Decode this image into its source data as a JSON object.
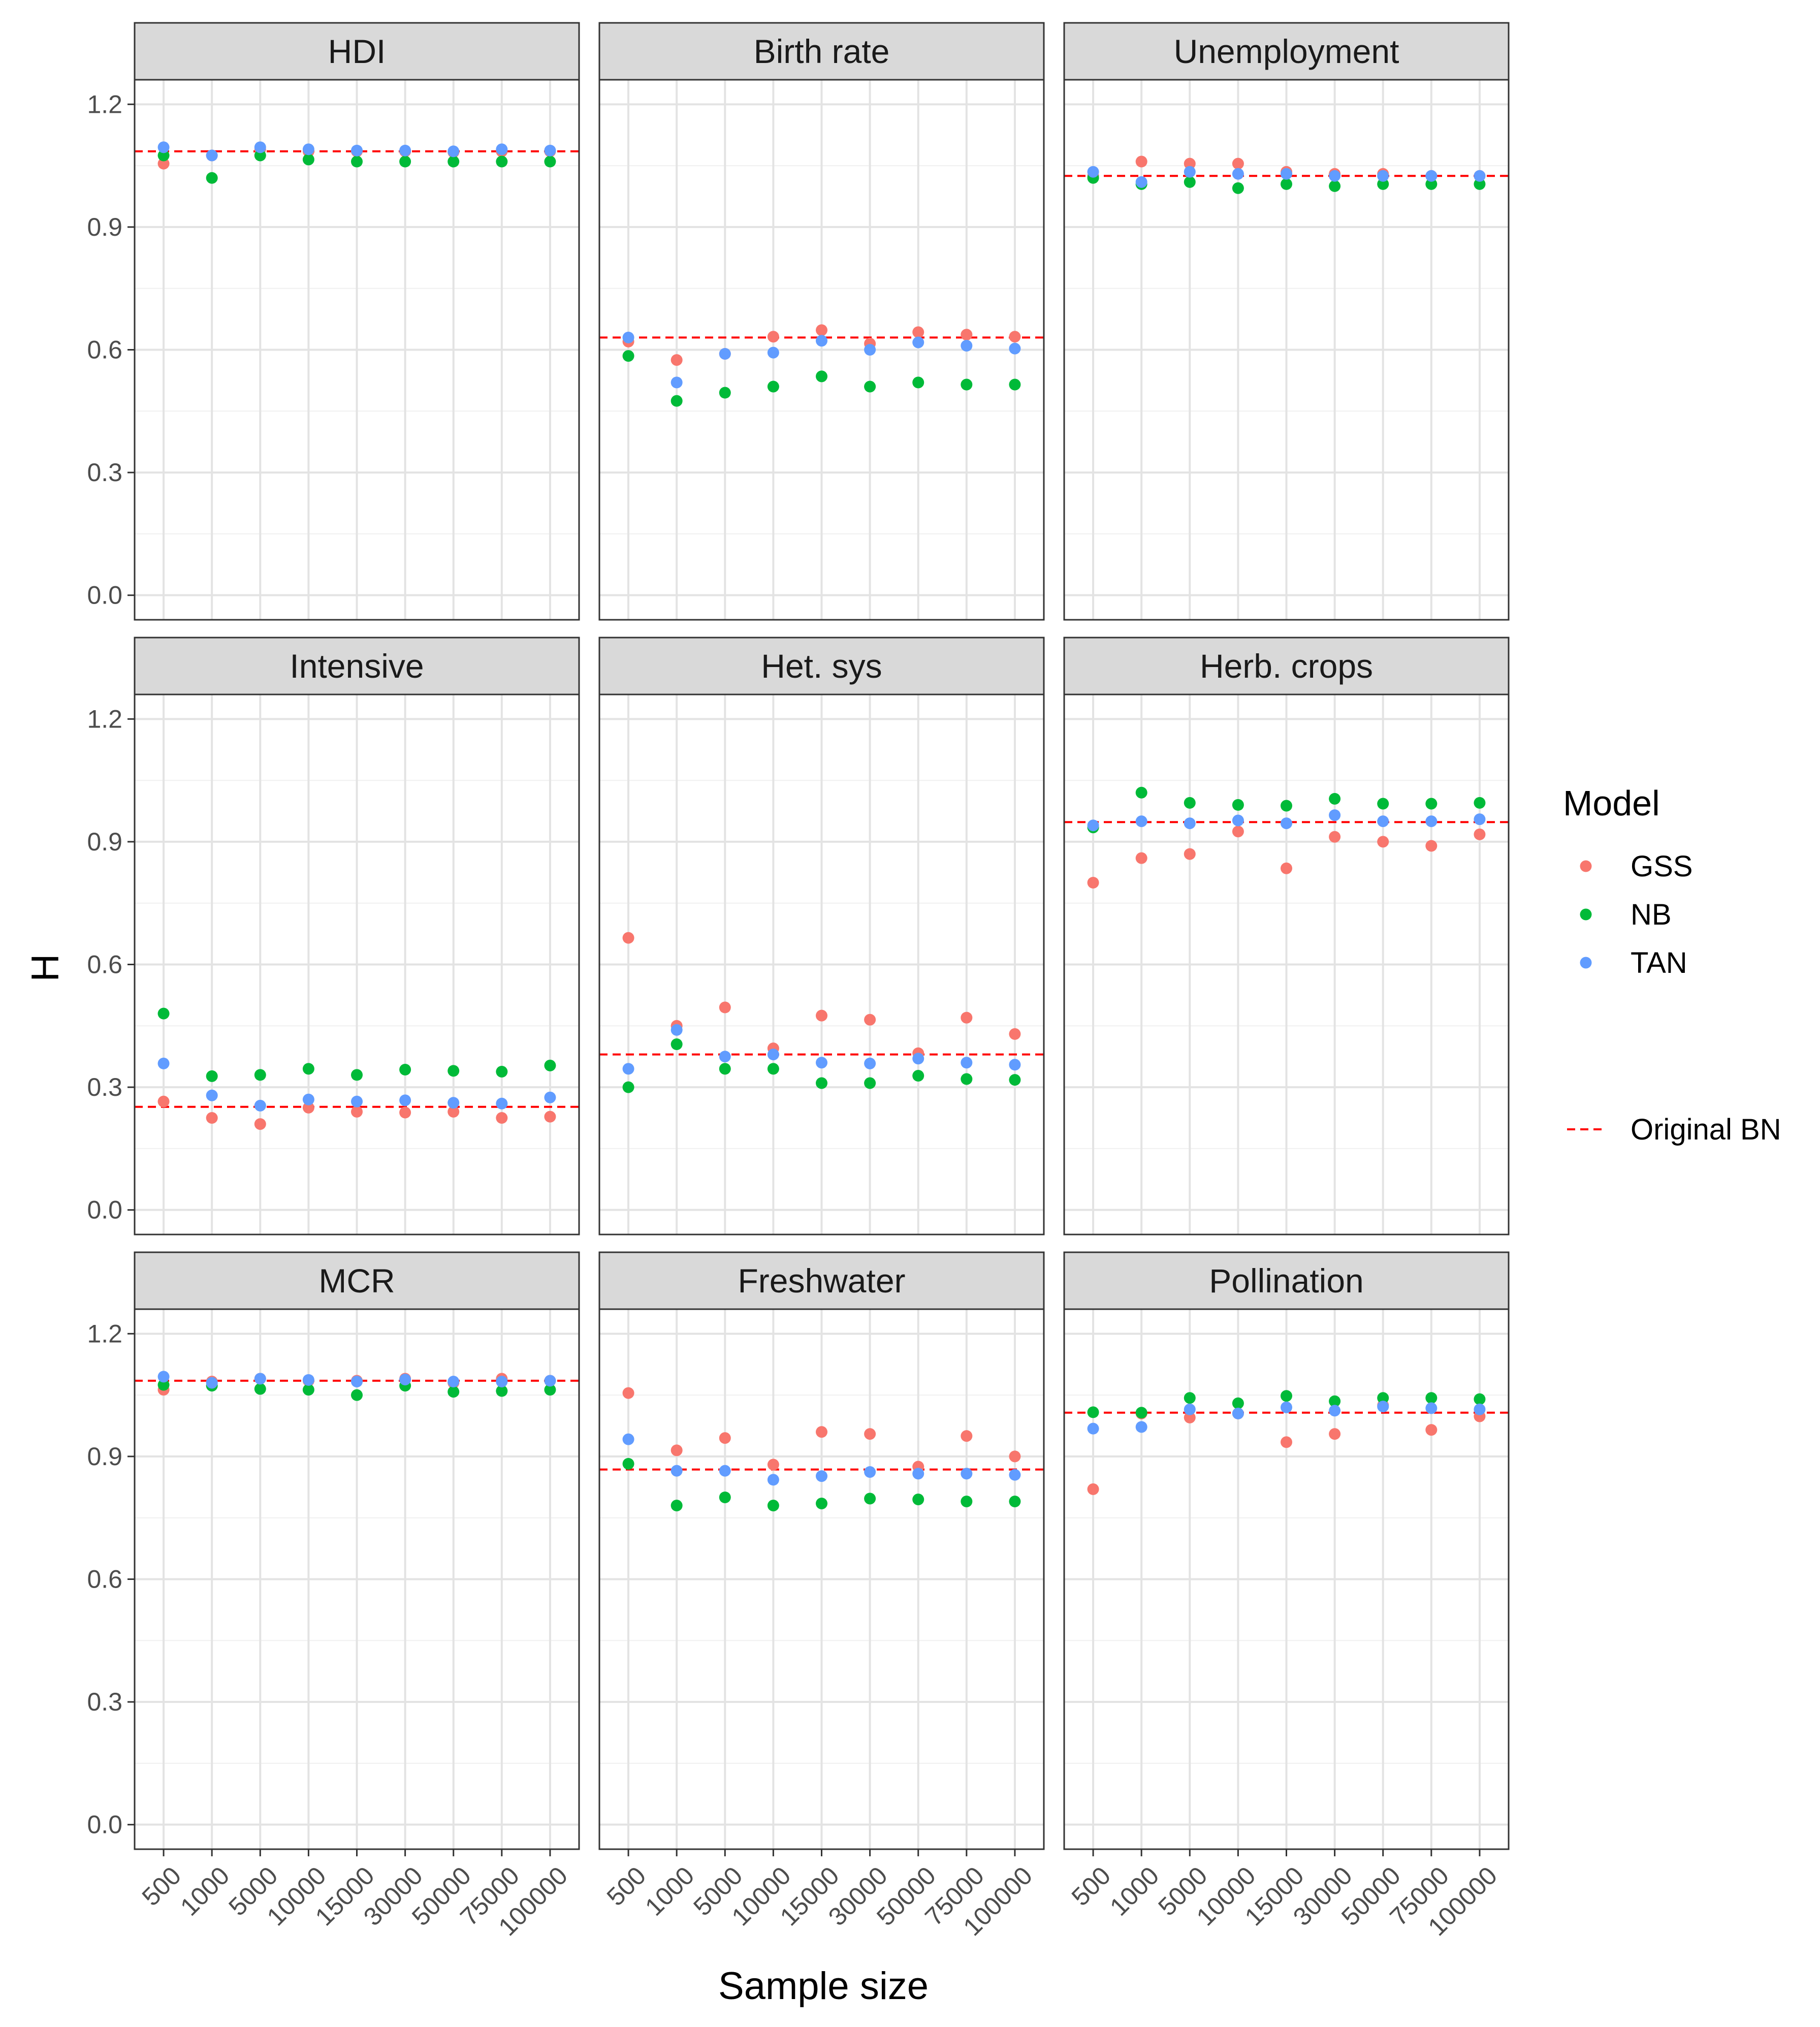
{
  "chart_data": {
    "type": "scatter",
    "facet_layout": "3x3",
    "xlabel": "Sample size",
    "ylabel": "H",
    "ylim": [
      -0.06,
      1.26
    ],
    "yticks": [
      0.0,
      0.3,
      0.6,
      0.9,
      1.2
    ],
    "ytick_labels": [
      "0.0",
      "0.3",
      "0.6",
      "0.9",
      "1.2"
    ],
    "categories": [
      "500",
      "1000",
      "5000",
      "10000",
      "15000",
      "30000",
      "50000",
      "75000",
      "100000"
    ],
    "legend": {
      "title": "Model",
      "position": "right",
      "entries": [
        {
          "label": "GSS",
          "color": "#F8766D"
        },
        {
          "label": "NB",
          "color": "#00BA38"
        },
        {
          "label": "TAN",
          "color": "#619CFF"
        }
      ],
      "reference_label": "Original BN",
      "reference_color": "#FF0000"
    },
    "panels": [
      {
        "title": "HDI",
        "reference": 1.085,
        "series": [
          {
            "name": "GSS",
            "values": [
              1.055,
              1.075,
              1.09,
              1.085,
              1.085,
              1.085,
              1.083,
              1.085,
              1.085
            ]
          },
          {
            "name": "NB",
            "values": [
              1.075,
              1.02,
              1.075,
              1.065,
              1.06,
              1.06,
              1.06,
              1.06,
              1.06
            ]
          },
          {
            "name": "TAN",
            "values": [
              1.095,
              1.075,
              1.095,
              1.09,
              1.087,
              1.087,
              1.085,
              1.09,
              1.087
            ]
          }
        ]
      },
      {
        "title": "Birth rate",
        "reference": 0.63,
        "series": [
          {
            "name": "GSS",
            "values": [
              0.62,
              0.575,
              0.59,
              0.632,
              0.648,
              0.615,
              0.643,
              0.637,
              0.632
            ]
          },
          {
            "name": "NB",
            "values": [
              0.585,
              0.475,
              0.495,
              0.51,
              0.535,
              0.51,
              0.52,
              0.515,
              0.515
            ]
          },
          {
            "name": "TAN",
            "values": [
              0.63,
              0.52,
              0.59,
              0.593,
              0.622,
              0.6,
              0.618,
              0.61,
              0.603
            ]
          }
        ]
      },
      {
        "title": "Unemployment",
        "reference": 1.025,
        "series": [
          {
            "name": "GSS",
            "values": [
              1.025,
              1.06,
              1.055,
              1.055,
              1.035,
              1.03,
              1.03,
              1.025,
              1.025
            ]
          },
          {
            "name": "NB",
            "values": [
              1.02,
              1.005,
              1.01,
              0.995,
              1.005,
              1.0,
              1.005,
              1.005,
              1.005
            ]
          },
          {
            "name": "TAN",
            "values": [
              1.035,
              1.01,
              1.035,
              1.03,
              1.03,
              1.025,
              1.025,
              1.025,
              1.025
            ]
          }
        ]
      },
      {
        "title": "Intensive",
        "reference": 0.252,
        "series": [
          {
            "name": "GSS",
            "values": [
              0.265,
              0.225,
              0.21,
              0.25,
              0.24,
              0.238,
              0.24,
              0.225,
              0.228
            ]
          },
          {
            "name": "NB",
            "values": [
              0.48,
              0.327,
              0.33,
              0.345,
              0.33,
              0.343,
              0.34,
              0.338,
              0.353
            ]
          },
          {
            "name": "TAN",
            "values": [
              0.358,
              0.28,
              0.255,
              0.27,
              0.265,
              0.268,
              0.262,
              0.26,
              0.275
            ]
          }
        ]
      },
      {
        "title": "Het. sys",
        "reference": 0.38,
        "series": [
          {
            "name": "GSS",
            "values": [
              0.665,
              0.45,
              0.495,
              0.395,
              0.475,
              0.465,
              0.383,
              0.47,
              0.43
            ]
          },
          {
            "name": "NB",
            "values": [
              0.3,
              0.405,
              0.345,
              0.345,
              0.31,
              0.31,
              0.328,
              0.32,
              0.318
            ]
          },
          {
            "name": "TAN",
            "values": [
              0.345,
              0.44,
              0.375,
              0.38,
              0.36,
              0.358,
              0.37,
              0.36,
              0.355
            ]
          }
        ]
      },
      {
        "title": "Herb. crops",
        "reference": 0.948,
        "series": [
          {
            "name": "GSS",
            "values": [
              0.8,
              0.86,
              0.87,
              0.925,
              0.835,
              0.912,
              0.9,
              0.89,
              0.918
            ]
          },
          {
            "name": "NB",
            "values": [
              0.935,
              1.02,
              0.995,
              0.99,
              0.988,
              1.005,
              0.993,
              0.993,
              0.995
            ]
          },
          {
            "name": "TAN",
            "values": [
              0.94,
              0.95,
              0.945,
              0.952,
              0.945,
              0.965,
              0.95,
              0.95,
              0.955
            ]
          }
        ]
      },
      {
        "title": "MCR",
        "reference": 1.085,
        "series": [
          {
            "name": "GSS",
            "values": [
              1.063,
              1.083,
              1.09,
              1.085,
              1.085,
              1.09,
              1.08,
              1.09,
              1.085
            ]
          },
          {
            "name": "NB",
            "values": [
              1.075,
              1.073,
              1.065,
              1.063,
              1.05,
              1.073,
              1.058,
              1.06,
              1.063
            ]
          },
          {
            "name": "TAN",
            "values": [
              1.095,
              1.08,
              1.09,
              1.087,
              1.083,
              1.088,
              1.083,
              1.083,
              1.085
            ]
          }
        ]
      },
      {
        "title": "Freshwater",
        "reference": 0.868,
        "series": [
          {
            "name": "GSS",
            "values": [
              1.055,
              0.915,
              0.945,
              0.88,
              0.96,
              0.955,
              0.875,
              0.95,
              0.9
            ]
          },
          {
            "name": "NB",
            "values": [
              0.882,
              0.78,
              0.8,
              0.78,
              0.785,
              0.797,
              0.795,
              0.79,
              0.79
            ]
          },
          {
            "name": "TAN",
            "values": [
              0.942,
              0.865,
              0.865,
              0.843,
              0.852,
              0.862,
              0.858,
              0.858,
              0.855
            ]
          }
        ]
      },
      {
        "title": "Pollination",
        "reference": 1.007,
        "series": [
          {
            "name": "GSS",
            "values": [
              0.82,
              1.005,
              0.995,
              1.005,
              0.935,
              0.955,
              1.025,
              0.965,
              0.998
            ]
          },
          {
            "name": "NB",
            "values": [
              1.008,
              1.007,
              1.043,
              1.03,
              1.048,
              1.035,
              1.043,
              1.043,
              1.04
            ]
          },
          {
            "name": "TAN",
            "values": [
              0.968,
              0.972,
              1.015,
              1.005,
              1.02,
              1.012,
              1.022,
              1.018,
              1.015
            ]
          }
        ]
      }
    ]
  }
}
